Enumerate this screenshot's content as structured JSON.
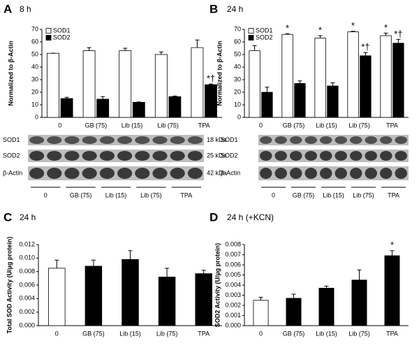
{
  "chart_data": [
    {
      "type": "bar",
      "panel": "A",
      "subtitle": "8 h",
      "y_label": "Normalized to β-Actin",
      "categories": [
        "0",
        "GB (75)",
        "Lib (15)",
        "Lib (75)",
        "TPA"
      ],
      "series": [
        {
          "name": "SOD1",
          "color": "#ffffff",
          "values": [
            51,
            53,
            53,
            50,
            55.5
          ],
          "errors": [
            0,
            2.5,
            2,
            2,
            6
          ],
          "marks": [
            null,
            null,
            null,
            null,
            null
          ]
        },
        {
          "name": "SOD2",
          "color": "#000000",
          "values": [
            15,
            14.5,
            12,
            16.5,
            26
          ],
          "errors": [
            1,
            2,
            0.3,
            0.5,
            0.5
          ],
          "marks": [
            null,
            null,
            null,
            null,
            "*†"
          ]
        }
      ],
      "ylim": [
        0,
        70
      ],
      "yticks": [
        0,
        10,
        20,
        30,
        40,
        50,
        60,
        70
      ],
      "legend": "upper left",
      "blot": {
        "bands": [
          {
            "name": "SOD1",
            "size": "18 kDa"
          },
          {
            "name": "SOD2",
            "size": "25 kDa"
          },
          {
            "name": "β-Actin",
            "size": "42 kDa"
          }
        ],
        "lanes": [
          "0",
          "GB (75)",
          "Lib (15)",
          "Lib (75)",
          "TPA"
        ]
      }
    },
    {
      "type": "bar",
      "panel": "B",
      "subtitle": "24 h",
      "y_label": "Normalized to β-Actin",
      "categories": [
        "0",
        "GB (75)",
        "Lib (15)",
        "Lib (75)",
        "TPA"
      ],
      "series": [
        {
          "name": "SOD1",
          "color": "#ffffff",
          "values": [
            53,
            66,
            63,
            68,
            65
          ],
          "errors": [
            4,
            0.5,
            2,
            0.5,
            2
          ],
          "marks": [
            null,
            "*",
            "*",
            "*",
            "*"
          ]
        },
        {
          "name": "SOD2",
          "color": "#000000",
          "values": [
            20,
            27,
            25,
            49,
            59
          ],
          "errors": [
            4,
            2,
            2.5,
            2.5,
            3
          ],
          "marks": [
            null,
            null,
            null,
            "*†",
            "*†"
          ]
        }
      ],
      "ylim": [
        0,
        70
      ],
      "yticks": [
        0,
        10,
        20,
        30,
        40,
        50,
        60,
        70
      ],
      "legend": "upper left",
      "blot": {
        "bands": [
          {
            "name": "SOD1"
          },
          {
            "name": "SOD2"
          },
          {
            "name": "β-Actin"
          }
        ],
        "lanes": [
          "0",
          "GB (75)",
          "Lib (15)",
          "Lib (75)",
          "TPA"
        ]
      }
    },
    {
      "type": "bar",
      "panel": "C",
      "subtitle": "24 h",
      "y_label": "Total SOD Activity (U/µg protein)",
      "categories": [
        "0",
        "GB (75)",
        "Lib (15)",
        "Lib (75)",
        "TPA"
      ],
      "values": [
        0.0085,
        0.0088,
        0.0098,
        0.0072,
        0.0077
      ],
      "errors": [
        0.0012,
        0.0009,
        0.0013,
        0.0013,
        0.0005
      ],
      "colors": [
        "#ffffff",
        "#000000",
        "#000000",
        "#000000",
        "#000000"
      ],
      "marks": [
        null,
        null,
        null,
        null,
        null
      ],
      "ylim": [
        0,
        0.012
      ],
      "yticks": [
        {
          "value": 0,
          "label": "0.000"
        },
        {
          "value": 0.002,
          "label": "0.002"
        },
        {
          "value": 0.004,
          "label": "0.004"
        },
        {
          "value": 0.006,
          "label": "0.006"
        },
        {
          "value": 0.008,
          "label": "0.008"
        },
        {
          "value": 0.01,
          "label": "0.010"
        },
        {
          "value": 0.012,
          "label": "0.012"
        }
      ]
    },
    {
      "type": "bar",
      "panel": "D",
      "subtitle": "24 h (+KCN)",
      "y_label": "SOD2 Activity (U/µg protein)",
      "categories": [
        "0",
        "GB (75)",
        "Lib (15)",
        "Lib (75)",
        "TPA"
      ],
      "values": [
        0.0025,
        0.0027,
        0.0037,
        0.0045,
        0.0069
      ],
      "errors": [
        0.0003,
        0.0004,
        0.0002,
        0.001,
        0.0005
      ],
      "colors": [
        "#ffffff",
        "#000000",
        "#000000",
        "#000000",
        "#000000"
      ],
      "marks": [
        null,
        null,
        null,
        null,
        "*"
      ],
      "ylim": [
        0,
        0.008
      ],
      "yticks": [
        {
          "value": 0,
          "label": "0.000"
        },
        {
          "value": 0.001,
          "label": "0.001"
        },
        {
          "value": 0.002,
          "label": "0.002"
        },
        {
          "value": 0.003,
          "label": "0.003"
        },
        {
          "value": 0.004,
          "label": "0.004"
        },
        {
          "value": 0.005,
          "label": "0.005"
        },
        {
          "value": 0.006,
          "label": "0.006"
        },
        {
          "value": 0.007,
          "label": "0.007"
        },
        {
          "value": 0.008,
          "label": "0.008"
        }
      ]
    }
  ]
}
